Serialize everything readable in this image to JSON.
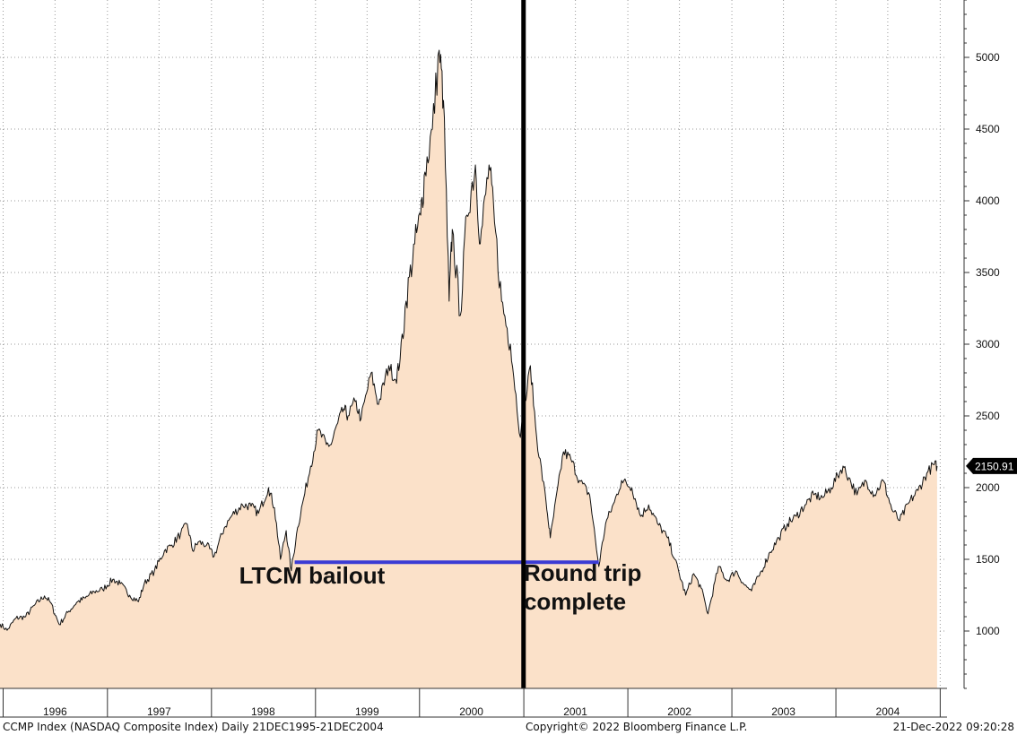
{
  "chart_data": {
    "type": "area",
    "series": [
      {
        "points": [
          [
            "1995-12-21",
            1050
          ],
          [
            "1996-01-15",
            1005
          ],
          [
            "1996-02-15",
            1090
          ],
          [
            "1996-03-20",
            1100
          ],
          [
            "1996-04-20",
            1180
          ],
          [
            "1996-05-25",
            1245
          ],
          [
            "1996-06-15",
            1200
          ],
          [
            "1996-07-16",
            1045
          ],
          [
            "1996-08-15",
            1130
          ],
          [
            "1996-09-15",
            1200
          ],
          [
            "1996-10-15",
            1230
          ],
          [
            "1996-11-15",
            1275
          ],
          [
            "1996-12-15",
            1290
          ],
          [
            "1997-01-20",
            1360
          ],
          [
            "1997-02-15",
            1330
          ],
          [
            "1997-03-20",
            1250
          ],
          [
            "1997-04-20",
            1205
          ],
          [
            "1997-05-10",
            1330
          ],
          [
            "1997-06-15",
            1420
          ],
          [
            "1997-07-20",
            1560
          ],
          [
            "1997-08-15",
            1600
          ],
          [
            "1997-09-15",
            1680
          ],
          [
            "1997-10-08",
            1745
          ],
          [
            "1997-10-27",
            1560
          ],
          [
            "1997-11-15",
            1620
          ],
          [
            "1997-12-15",
            1600
          ],
          [
            "1998-01-10",
            1520
          ],
          [
            "1998-02-15",
            1720
          ],
          [
            "1998-03-15",
            1810
          ],
          [
            "1998-04-20",
            1880
          ],
          [
            "1998-05-20",
            1870
          ],
          [
            "1998-06-15",
            1820
          ],
          [
            "1998-07-20",
            2000
          ],
          [
            "1998-08-10",
            1860
          ],
          [
            "1998-08-31",
            1500
          ],
          [
            "1998-09-20",
            1700
          ],
          [
            "1998-10-08",
            1420
          ],
          [
            "1998-10-30",
            1720
          ],
          [
            "1998-11-20",
            1920
          ],
          [
            "1998-12-15",
            2150
          ],
          [
            "1999-01-10",
            2400
          ],
          [
            "1999-02-08",
            2300
          ],
          [
            "1999-02-25",
            2300
          ],
          [
            "1999-03-20",
            2450
          ],
          [
            "1999-04-10",
            2550
          ],
          [
            "1999-04-25",
            2500
          ],
          [
            "1999-05-20",
            2600
          ],
          [
            "1999-06-10",
            2480
          ],
          [
            "1999-07-15",
            2800
          ],
          [
            "1999-08-10",
            2580
          ],
          [
            "1999-09-15",
            2850
          ],
          [
            "1999-10-10",
            2750
          ],
          [
            "1999-10-25",
            2900
          ],
          [
            "1999-11-15",
            3300
          ],
          [
            "1999-12-15",
            3700
          ],
          [
            "2000-01-05",
            3900
          ],
          [
            "2000-01-20",
            4200
          ],
          [
            "2000-02-15",
            4500
          ],
          [
            "2000-03-10",
            5050
          ],
          [
            "2000-03-25",
            4700
          ],
          [
            "2000-04-14",
            3300
          ],
          [
            "2000-04-25",
            3800
          ],
          [
            "2000-05-23",
            3200
          ],
          [
            "2000-06-15",
            3900
          ],
          [
            "2000-07-15",
            4250
          ],
          [
            "2000-08-01",
            3700
          ],
          [
            "2000-09-01",
            4250
          ],
          [
            "2000-09-20",
            3850
          ],
          [
            "2000-10-15",
            3300
          ],
          [
            "2000-11-15",
            3000
          ],
          [
            "2000-12-20",
            2350
          ],
          [
            "2001-01-24",
            2850
          ],
          [
            "2001-02-15",
            2350
          ],
          [
            "2001-03-20",
            1900
          ],
          [
            "2001-04-04",
            1650
          ],
          [
            "2001-05-20",
            2250
          ],
          [
            "2001-06-15",
            2200
          ],
          [
            "2001-07-15",
            2050
          ],
          [
            "2001-08-20",
            1950
          ],
          [
            "2001-09-21",
            1450
          ],
          [
            "2001-10-15",
            1750
          ],
          [
            "2001-11-15",
            1900
          ],
          [
            "2001-12-10",
            2050
          ],
          [
            "2002-01-15",
            2000
          ],
          [
            "2002-02-15",
            1800
          ],
          [
            "2002-03-15",
            1880
          ],
          [
            "2002-04-15",
            1750
          ],
          [
            "2002-05-20",
            1650
          ],
          [
            "2002-06-15",
            1500
          ],
          [
            "2002-07-23",
            1250
          ],
          [
            "2002-08-20",
            1400
          ],
          [
            "2002-09-15",
            1300
          ],
          [
            "2002-10-09",
            1120
          ],
          [
            "2002-11-15",
            1450
          ],
          [
            "2002-12-15",
            1350
          ],
          [
            "2003-01-15",
            1420
          ],
          [
            "2003-02-15",
            1320
          ],
          [
            "2003-03-11",
            1280
          ],
          [
            "2003-04-15",
            1420
          ],
          [
            "2003-05-15",
            1550
          ],
          [
            "2003-06-15",
            1650
          ],
          [
            "2003-07-15",
            1750
          ],
          [
            "2003-08-15",
            1800
          ],
          [
            "2003-09-15",
            1880
          ],
          [
            "2003-10-15",
            1950
          ],
          [
            "2003-11-15",
            1930
          ],
          [
            "2003-12-15",
            2000
          ],
          [
            "2004-01-26",
            2150
          ],
          [
            "2004-02-15",
            2070
          ],
          [
            "2004-03-15",
            1950
          ],
          [
            "2004-04-15",
            2050
          ],
          [
            "2004-05-15",
            1950
          ],
          [
            "2004-06-15",
            2050
          ],
          [
            "2004-07-15",
            1850
          ],
          [
            "2004-08-12",
            1770
          ],
          [
            "2004-09-15",
            1900
          ],
          [
            "2004-10-15",
            1980
          ],
          [
            "2004-11-15",
            2100
          ],
          [
            "2004-12-10",
            2160
          ],
          [
            "2004-12-21",
            2150.91
          ]
        ]
      }
    ],
    "ylim": [
      600,
      5400
    ],
    "xlim": [
      "1995-12-21",
      "2005-01-25"
    ],
    "ytick_values": [
      1000,
      1500,
      2000,
      2500,
      3000,
      3500,
      4000,
      4500,
      5000
    ],
    "ytick_labels": [
      "1000",
      "1500",
      "2000",
      "2500",
      "3000",
      "3500",
      "4000",
      "4500",
      "5000"
    ],
    "year_labels": [
      "1996",
      "1997",
      "1998",
      "1999",
      "2000",
      "2001",
      "2002",
      "2003",
      "2004"
    ],
    "last_value_label": "2150.91",
    "annotations": [
      {
        "name": "ltcm-bailout",
        "lines": [
          "LTCM bailout"
        ],
        "x": "1998-10-20",
        "y": 1330
      },
      {
        "name": "round-trip",
        "lines": [
          "Round trip",
          "complete"
        ],
        "x": "2001-01-10",
        "y": 1350
      }
    ],
    "horizontal_line": {
      "y": 1480,
      "x_start": "1998-10-20",
      "x_end": "2001-09-21",
      "color": "#3b3bd4"
    },
    "vertical_line": {
      "x": "2000-12-31",
      "color": "#000000"
    },
    "fill_color": "#fbe1c9",
    "line_color": "#111111",
    "grid": true
  },
  "footer": {
    "left": "CCMP Index (NASDAQ Composite Index)  Daily 21DEC1995-21DEC2004",
    "center": "Copyright© 2022 Bloomberg Finance L.P.",
    "right": "21-Dec-2022 09:20:28"
  }
}
